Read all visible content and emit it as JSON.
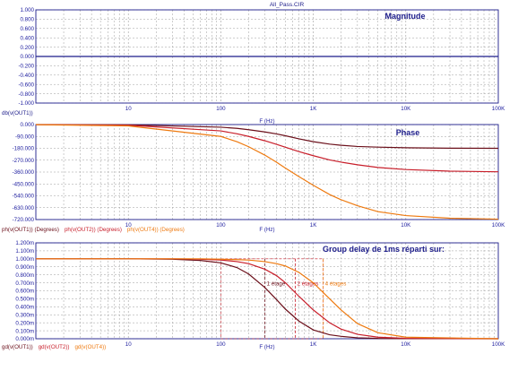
{
  "page_title": "All_Pass.CIR",
  "colors": {
    "axis": "#1c1c8a",
    "grid": "#9c9c9c",
    "zero_line": "#1c1c8a",
    "tick_text": "#2020a0",
    "title_text": "#1c1c8a",
    "curve_1": "#6b0f1a",
    "curve_2": "#c81e2a",
    "curve_4": "#ee7a10"
  },
  "chart_data": [
    {
      "type": "line",
      "id": "magnitude",
      "title": "Magnitude",
      "xlabel": "F (Hz)",
      "x_scale": "log",
      "xlim": [
        1,
        100000
      ],
      "ylim": [
        -1.0,
        1.0
      ],
      "x_tick_labels": [
        {
          "value": 10,
          "label": "10"
        },
        {
          "value": 100,
          "label": "100"
        },
        {
          "value": 1000,
          "label": "1K"
        },
        {
          "value": 10000,
          "label": "10K"
        },
        {
          "value": 100000,
          "label": "100K"
        }
      ],
      "y_ticks": [
        1.0,
        0.8,
        0.6,
        0.4,
        0.2,
        0.0,
        -0.2,
        -0.4,
        -0.6,
        -0.8,
        -1.0
      ],
      "y_tick_labels": [
        "1.000",
        "0.800",
        "0.600",
        "0.400",
        "0.200",
        "0.000",
        "-0.200",
        "-0.400",
        "-0.600",
        "-0.800",
        "-1.000"
      ],
      "grid": true,
      "series": [
        {
          "name": "db(v(OUT1))",
          "color": "#1c1c8a",
          "x": [
            1,
            100000
          ],
          "y": [
            0,
            0
          ]
        }
      ]
    },
    {
      "type": "line",
      "id": "phase",
      "title": "Phase",
      "xlabel": "F (Hz)",
      "x_scale": "log",
      "xlim": [
        1,
        100000
      ],
      "ylim": [
        -720,
        0
      ],
      "x_tick_labels": [
        {
          "value": 10,
          "label": "10"
        },
        {
          "value": 100,
          "label": "100"
        },
        {
          "value": 1000,
          "label": "1K"
        },
        {
          "value": 10000,
          "label": "10K"
        },
        {
          "value": 100000,
          "label": "100K"
        }
      ],
      "y_ticks": [
        0,
        -90,
        -180,
        -270,
        -360,
        -450,
        -540,
        -630,
        -720
      ],
      "y_tick_labels": [
        "0.000",
        "-90.000",
        "-180.000",
        "-270.000",
        "-360.000",
        "-450.000",
        "-540.000",
        "-630.000",
        "-720.000"
      ],
      "grid": true,
      "series": [
        {
          "name": "ph(v(OUT1)) (Degrees)",
          "color": "#6b0f1a",
          "x": [
            1,
            10,
            100,
            150,
            200,
            300,
            400,
            500,
            700,
            1000,
            1500,
            2000,
            3000,
            5000,
            10000,
            30000,
            100000
          ],
          "y": [
            -0.2,
            -2,
            -20,
            -29,
            -39,
            -56,
            -71,
            -85,
            -108,
            -130,
            -148,
            -157,
            -166,
            -171,
            -176,
            -179,
            -179.8
          ]
        },
        {
          "name": "ph(v(OUT2)) (Degrees)",
          "color": "#c81e2a",
          "x": [
            1,
            10,
            100,
            150,
            200,
            300,
            400,
            500,
            700,
            1000,
            1500,
            2000,
            3000,
            5000,
            10000,
            30000,
            100000
          ],
          "y": [
            -0.5,
            -5,
            -48,
            -70,
            -90,
            -123,
            -150,
            -172,
            -205,
            -236,
            -268,
            -285,
            -305,
            -325,
            -341,
            -353,
            -358
          ]
        },
        {
          "name": "ph(v(OUT4)) (Degrees)",
          "color": "#ee7a10",
          "x": [
            1,
            10,
            100,
            150,
            200,
            300,
            400,
            500,
            700,
            1000,
            1500,
            2000,
            3000,
            5000,
            10000,
            30000,
            100000
          ],
          "y": [
            -1,
            -10,
            -90,
            -130,
            -168,
            -232,
            -285,
            -330,
            -395,
            -460,
            -530,
            -570,
            -615,
            -660,
            -690,
            -710,
            -717
          ]
        }
      ]
    },
    {
      "type": "line",
      "id": "group-delay",
      "title": "Group delay de 1ms réparti sur:",
      "xlabel": "F (Hz)",
      "x_scale": "log",
      "xlim": [
        1,
        100000
      ],
      "ylim": [
        0,
        1.2
      ],
      "x_tick_labels": [
        {
          "value": 10,
          "label": "10"
        },
        {
          "value": 100,
          "label": "100"
        },
        {
          "value": 1000,
          "label": "1K"
        },
        {
          "value": 10000,
          "label": "10K"
        },
        {
          "value": 100000,
          "label": "100K"
        }
      ],
      "y_ticks": [
        1.2,
        1.1,
        1.0,
        0.9,
        0.8,
        0.7,
        0.6,
        0.5,
        0.4,
        0.3,
        0.2,
        0.1,
        0.0
      ],
      "y_tick_labels": [
        "1.200m",
        "1.100m",
        "1.000m",
        "0.900m",
        "0.800m",
        "0.700m",
        "0.600m",
        "0.500m",
        "0.400m",
        "0.300m",
        "0.200m",
        "0.100m",
        "0.000m"
      ],
      "grid": true,
      "series": [
        {
          "name": "gd(v(OUT1))",
          "color": "#6b0f1a",
          "x": [
            1,
            10,
            30,
            60,
            100,
            150,
            200,
            300,
            400,
            500,
            700,
            1000,
            1500,
            2000,
            3000,
            5000,
            10000,
            100000
          ],
          "y": [
            1.0,
            1.0,
            0.995,
            0.98,
            0.95,
            0.89,
            0.81,
            0.64,
            0.49,
            0.37,
            0.22,
            0.11,
            0.05,
            0.03,
            0.012,
            0.004,
            0.001,
            0.0
          ]
        },
        {
          "name": "gd(v(OUT2))",
          "color": "#c81e2a",
          "x": [
            1,
            10,
            30,
            60,
            100,
            150,
            200,
            300,
            400,
            500,
            700,
            1000,
            1500,
            2000,
            3000,
            5000,
            10000,
            100000
          ],
          "y": [
            1.0,
            1.0,
            1.0,
            0.995,
            0.985,
            0.965,
            0.94,
            0.87,
            0.79,
            0.7,
            0.53,
            0.36,
            0.2,
            0.12,
            0.055,
            0.02,
            0.005,
            0.0
          ]
        },
        {
          "name": "gd(v(OUT4))",
          "color": "#ee7a10",
          "x": [
            1,
            10,
            30,
            60,
            100,
            150,
            200,
            300,
            400,
            500,
            700,
            1000,
            1500,
            2000,
            3000,
            5000,
            10000,
            100000
          ],
          "y": [
            1.0,
            1.0,
            1.0,
            1.0,
            0.995,
            0.99,
            0.985,
            0.965,
            0.94,
            0.91,
            0.83,
            0.7,
            0.5,
            0.36,
            0.19,
            0.075,
            0.02,
            0.0
          ]
        }
      ],
      "annotations": [
        {
          "text": "1 étage",
          "x_from": 300,
          "x_to": 300,
          "color": "#6b0f1a"
        },
        {
          "text": "2 étages",
          "x_from": 640,
          "x_to": 640,
          "color": "#c81e2a"
        },
        {
          "text": "4 étages",
          "x_from": 1280,
          "x_to": 1280,
          "color": "#ee7a10"
        }
      ],
      "marker_box": {
        "x_from": 100,
        "x_to": 1280,
        "y_from": 0.0,
        "y_to": 1.0
      }
    }
  ]
}
